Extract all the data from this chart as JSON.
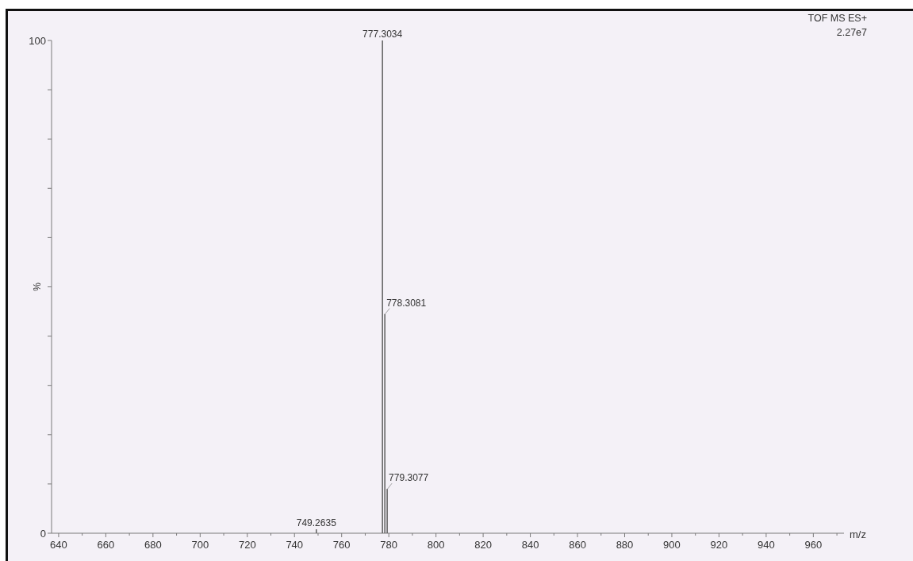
{
  "chart_data": {
    "type": "bar",
    "x": [
      749.2635,
      777.3034,
      778.3081,
      779.3077
    ],
    "values": [
      0.8,
      100,
      44.5,
      9
    ],
    "color": "#5e5e5e",
    "xlim": [
      637,
      973
    ],
    "xticks": [
      640,
      {
        "value": 650,
        "label": null
      },
      660,
      {
        "value": 670,
        "label": null
      },
      680,
      {
        "value": 690,
        "label": null
      },
      700,
      {
        "value": 710,
        "label": null
      },
      720,
      {
        "value": 730,
        "label": null
      },
      740,
      {
        "value": 750,
        "label": null
      },
      760,
      {
        "value": 770,
        "label": null
      },
      780,
      {
        "value": 790,
        "label": null
      },
      800,
      {
        "value": 810,
        "label": null
      },
      820,
      {
        "value": 830,
        "label": null
      },
      840,
      {
        "value": 850,
        "label": null
      },
      860,
      {
        "value": 870,
        "label": null
      },
      880,
      {
        "value": 890,
        "label": null
      },
      900,
      {
        "value": 910,
        "label": null
      },
      920,
      {
        "value": 930,
        "label": null
      },
      940,
      {
        "value": 950,
        "label": null
      },
      960,
      {
        "value": 970,
        "label": null
      }
    ],
    "ylim": [
      0,
      100
    ],
    "yticks": [
      0,
      {
        "value": 10,
        "label": null
      },
      {
        "value": 20,
        "label": null
      },
      {
        "value": 30,
        "label": null
      },
      {
        "value": 40,
        "label": null
      },
      {
        "value": 50,
        "label": null
      },
      {
        "value": 60,
        "label": null
      },
      {
        "value": 70,
        "label": null
      },
      {
        "value": 80,
        "label": null
      },
      {
        "value": 90,
        "label": null
      },
      100
    ],
    "xlabel": "m/z",
    "ylabel": "%",
    "annotations": [
      {
        "text": "749.2635",
        "x": 749.2635,
        "y": 0.8
      },
      {
        "text": "777.3034",
        "x": 777.3034,
        "y": 100
      },
      {
        "text": "778.3081",
        "x": 778.3081,
        "y": 44.5
      },
      {
        "text": "779.3077",
        "x": 779.3077,
        "y": 9
      },
      "TOF MS ES+",
      "2.27e7"
    ]
  }
}
